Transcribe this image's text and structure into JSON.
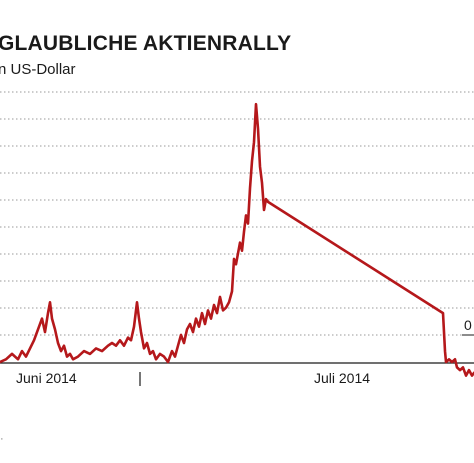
{
  "chart_data": {
    "type": "line",
    "title": "GLAUBLICHE AKTIENRALLY",
    "subtitle": "n US-Dollar",
    "x_ticks": [
      "Juni 2014",
      "Juli 2014"
    ],
    "partial_value_label": "0",
    "grid": true,
    "series": [
      {
        "color": "#b5181b",
        "points": [
          [
            0,
            0.0
          ],
          [
            6,
            0.01
          ],
          [
            12,
            0.03
          ],
          [
            18,
            0.01
          ],
          [
            22,
            0.04
          ],
          [
            26,
            0.02
          ],
          [
            30,
            0.05
          ],
          [
            34,
            0.08
          ],
          [
            38,
            0.12
          ],
          [
            42,
            0.16
          ],
          [
            45,
            0.11
          ],
          [
            48,
            0.18
          ],
          [
            50,
            0.22
          ],
          [
            52,
            0.16
          ],
          [
            55,
            0.12
          ],
          [
            58,
            0.07
          ],
          [
            61,
            0.04
          ],
          [
            64,
            0.06
          ],
          [
            67,
            0.02
          ],
          [
            70,
            0.03
          ],
          [
            73,
            0.01
          ],
          [
            78,
            0.02
          ],
          [
            84,
            0.04
          ],
          [
            90,
            0.03
          ],
          [
            96,
            0.05
          ],
          [
            102,
            0.04
          ],
          [
            108,
            0.06
          ],
          [
            112,
            0.07
          ],
          [
            116,
            0.06
          ],
          [
            120,
            0.08
          ],
          [
            124,
            0.06
          ],
          [
            128,
            0.09
          ],
          [
            131,
            0.08
          ],
          [
            134,
            0.13
          ],
          [
            137,
            0.22
          ],
          [
            139,
            0.16
          ],
          [
            141,
            0.11
          ],
          [
            144,
            0.05
          ],
          [
            147,
            0.07
          ],
          [
            150,
            0.03
          ],
          [
            153,
            0.04
          ],
          [
            156,
            0.01
          ],
          [
            160,
            0.03
          ],
          [
            164,
            0.02
          ],
          [
            168,
            0.0
          ],
          [
            172,
            0.04
          ],
          [
            175,
            0.02
          ],
          [
            178,
            0.06
          ],
          [
            181,
            0.1
          ],
          [
            184,
            0.07
          ],
          [
            187,
            0.12
          ],
          [
            190,
            0.14
          ],
          [
            193,
            0.11
          ],
          [
            196,
            0.16
          ],
          [
            199,
            0.13
          ],
          [
            202,
            0.18
          ],
          [
            205,
            0.14
          ],
          [
            208,
            0.19
          ],
          [
            211,
            0.16
          ],
          [
            214,
            0.21
          ],
          [
            217,
            0.18
          ],
          [
            220,
            0.24
          ],
          [
            223,
            0.19
          ],
          [
            226,
            0.2
          ],
          [
            229,
            0.22
          ],
          [
            232,
            0.26
          ],
          [
            234,
            0.38
          ],
          [
            236,
            0.36
          ],
          [
            238,
            0.4
          ],
          [
            240,
            0.44
          ],
          [
            242,
            0.41
          ],
          [
            244,
            0.48
          ],
          [
            246,
            0.54
          ],
          [
            248,
            0.51
          ],
          [
            250,
            0.64
          ],
          [
            252,
            0.74
          ],
          [
            254,
            0.81
          ],
          [
            256,
            0.95
          ],
          [
            258,
            0.86
          ],
          [
            260,
            0.72
          ],
          [
            262,
            0.66
          ],
          [
            264,
            0.56
          ],
          [
            266,
            0.6
          ],
          [
            268,
            0.59
          ],
          [
            443,
            0.18
          ],
          [
            445,
            0.04
          ],
          [
            446,
            0.0
          ],
          [
            449,
            0.01
          ],
          [
            452,
            0.0
          ],
          [
            455,
            0.01
          ],
          [
            457,
            -0.02
          ],
          [
            460,
            -0.03
          ],
          [
            463,
            -0.02
          ],
          [
            466,
            -0.05
          ],
          [
            469,
            -0.03
          ],
          [
            472,
            -0.05
          ],
          [
            474,
            -0.04
          ]
        ]
      }
    ]
  }
}
